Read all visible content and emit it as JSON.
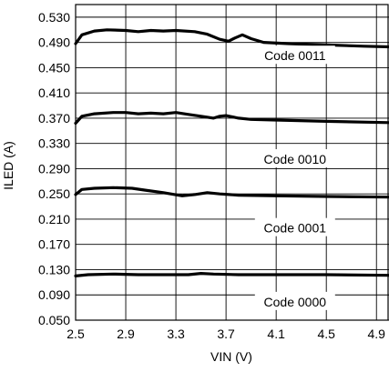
{
  "chart_data": {
    "type": "line",
    "xlabel": "VIN (V)",
    "ylabel": "ILED (A)",
    "xlim": [
      2.5,
      5.0
    ],
    "ylim": [
      0.05,
      0.55
    ],
    "x_ticks": [
      2.5,
      2.9,
      3.3,
      3.7,
      4.1,
      4.5,
      4.9
    ],
    "x_tick_labels": [
      "2.5",
      "2.9",
      "3.3",
      "3.7",
      "4.1",
      "4.5",
      "4.9"
    ],
    "y_ticks": [
      0.05,
      0.09,
      0.13,
      0.17,
      0.21,
      0.25,
      0.29,
      0.33,
      0.37,
      0.41,
      0.45,
      0.49,
      0.53
    ],
    "y_tick_labels": [
      "0.050",
      "0.090",
      "0.130",
      "0.170",
      "0.210",
      "0.250",
      "0.290",
      "0.330",
      "0.370",
      "0.410",
      "0.450",
      "0.490",
      "0.530"
    ],
    "grid": true,
    "line_color": "#000000",
    "series": [
      {
        "name": "Code 0011",
        "x": [
          2.5,
          2.55,
          2.65,
          2.75,
          2.9,
          3.0,
          3.1,
          3.2,
          3.3,
          3.45,
          3.55,
          3.65,
          3.72,
          3.77,
          3.83,
          3.9,
          4.0,
          4.2,
          4.5,
          4.8,
          5.0
        ],
        "y": [
          0.488,
          0.502,
          0.508,
          0.51,
          0.509,
          0.507,
          0.509,
          0.508,
          0.509,
          0.507,
          0.503,
          0.495,
          0.492,
          0.497,
          0.502,
          0.496,
          0.49,
          0.488,
          0.486,
          0.484,
          0.483
        ]
      },
      {
        "name": "Code 0010",
        "x": [
          2.5,
          2.55,
          2.65,
          2.8,
          2.9,
          3.0,
          3.1,
          3.2,
          3.3,
          3.4,
          3.5,
          3.6,
          3.65,
          3.7,
          3.8,
          3.9,
          4.1,
          4.5,
          5.0
        ],
        "y": [
          0.362,
          0.373,
          0.377,
          0.379,
          0.379,
          0.377,
          0.378,
          0.377,
          0.379,
          0.376,
          0.373,
          0.37,
          0.373,
          0.374,
          0.37,
          0.368,
          0.367,
          0.365,
          0.363
        ]
      },
      {
        "name": "Code 0001",
        "x": [
          2.5,
          2.55,
          2.65,
          2.8,
          2.95,
          3.05,
          3.2,
          3.35,
          3.45,
          3.55,
          3.65,
          3.8,
          4.1,
          4.5,
          5.0
        ],
        "y": [
          0.249,
          0.257,
          0.259,
          0.26,
          0.259,
          0.256,
          0.252,
          0.247,
          0.249,
          0.252,
          0.25,
          0.248,
          0.247,
          0.246,
          0.245
        ]
      },
      {
        "name": "Code 0000",
        "x": [
          2.5,
          2.6,
          2.8,
          3.0,
          3.2,
          3.4,
          3.5,
          3.6,
          3.8,
          4.1,
          4.5,
          5.0
        ],
        "y": [
          0.12,
          0.122,
          0.123,
          0.122,
          0.122,
          0.122,
          0.124,
          0.123,
          0.122,
          0.122,
          0.122,
          0.121
        ]
      }
    ],
    "annotations": [
      {
        "text": "Code 0011",
        "x": 4.25,
        "y": 0.469
      },
      {
        "text": "Code 0010",
        "x": 4.25,
        "y": 0.305
      },
      {
        "text": "Code 0001",
        "x": 4.25,
        "y": 0.196
      },
      {
        "text": "Code 0000",
        "x": 4.25,
        "y": 0.079
      }
    ]
  }
}
